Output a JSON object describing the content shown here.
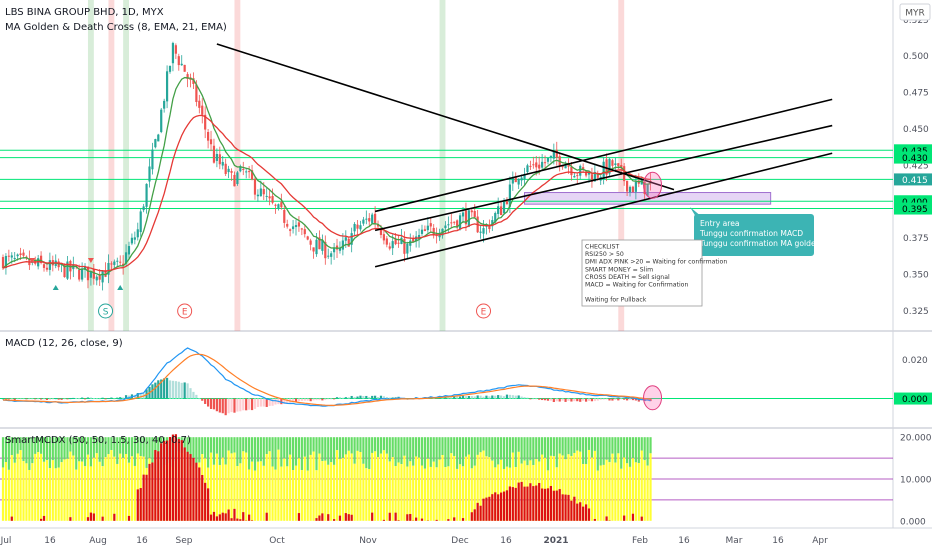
{
  "header": {
    "symbol_title": "LBS BINA GROUP BHD, 1D, MYX",
    "indicator_label": "MA Golden & Death Cross (8, EMA, 21, EMA)"
  },
  "currency_badge": "MYR",
  "panes": {
    "macd_label": "MACD (12, 26, close, 9)",
    "smart_label": "SmartMCDX (50, 50, 1.5, 30, 40, 0.7)"
  },
  "colors": {
    "up": "#26a69a",
    "down": "#ef5350",
    "ema_fast": "#43a047",
    "ema_slow": "#e53935",
    "macd_line": "#2196f3",
    "signal_line": "#ff7f27",
    "level_green": "#00e676",
    "smart_green": "#66dd66",
    "smart_yellow": "#ffff33",
    "smart_red": "#dd1111",
    "annotation_bg": "#3cb4b4",
    "zone_fill": "#e6d5f5"
  },
  "annotations": {
    "entry_box": [
      "Entry area",
      "Tunggu confirmation MACD",
      "Tunggu confirmation MA golden cross"
    ],
    "checklist": [
      "CHECKLIST",
      "RSI250 > 50",
      "DMI ADX PINK >20 = Waiting for confirmation",
      "SMART MONEY = Slim",
      "CROSS DEATH = Sell signal",
      "MACD = Waiting for Confirmation",
      "",
      "Waiting for Pullback"
    ],
    "markers": [
      {
        "label": "S",
        "color": "#26a69a",
        "date_index": 35
      },
      {
        "label": "E",
        "color": "#ef5350",
        "date_index": 62
      },
      {
        "label": "E",
        "color": "#ef5350",
        "date_index": 164
      }
    ]
  },
  "chart_data": {
    "type": "candlestick",
    "price_axis": {
      "ylim": [
        0.315,
        0.53
      ],
      "ticks": [
        "0.525",
        "0.500",
        "0.475",
        "0.450",
        "0.425",
        "0.400",
        "0.375",
        "0.350",
        "0.325"
      ],
      "tick_values": [
        0.525,
        0.5,
        0.475,
        0.45,
        0.425,
        0.4,
        0.375,
        0.35,
        0.325
      ]
    },
    "highlighted_levels": [
      {
        "label": "0.435",
        "value": 0.435
      },
      {
        "label": "0.430",
        "value": 0.43
      },
      {
        "label": "0.415",
        "value": 0.415,
        "current": true
      },
      {
        "label": "0.400",
        "value": 0.4
      },
      {
        "label": "0.395",
        "value": 0.395
      }
    ],
    "time_axis": [
      "Jul",
      "16",
      "Aug",
      "16",
      "Sep",
      "Oct",
      "Nov",
      "Dec",
      "16",
      "2021",
      "Feb",
      "16",
      "Mar",
      "16",
      "Apr"
    ],
    "macd_axis": {
      "ticks": [
        "0.020",
        "0.000"
      ],
      "tick_values": [
        0.02,
        0.0
      ],
      "highlight": "0.000",
      "ylim": [
        -0.012,
        0.032
      ]
    },
    "smart_axis": {
      "ticks": [
        "20.000",
        "10.000",
        "0.000"
      ],
      "tick_values": [
        20,
        10,
        0
      ],
      "ylim": [
        -1,
        21
      ]
    },
    "smart_levels": [
      15,
      10,
      5
    ],
    "price_keyframes": [
      [
        0,
        0.36
      ],
      [
        15,
        0.355
      ],
      [
        30,
        0.35
      ],
      [
        40,
        0.355
      ],
      [
        46,
        0.38
      ],
      [
        52,
        0.44
      ],
      [
        58,
        0.505
      ],
      [
        62,
        0.49
      ],
      [
        66,
        0.47
      ],
      [
        72,
        0.43
      ],
      [
        78,
        0.415
      ],
      [
        82,
        0.42
      ],
      [
        90,
        0.4
      ],
      [
        98,
        0.385
      ],
      [
        106,
        0.37
      ],
      [
        114,
        0.363
      ],
      [
        120,
        0.38
      ],
      [
        126,
        0.39
      ],
      [
        132,
        0.372
      ],
      [
        138,
        0.368
      ],
      [
        144,
        0.378
      ],
      [
        152,
        0.385
      ],
      [
        158,
        0.39
      ],
      [
        164,
        0.38
      ],
      [
        170,
        0.395
      ],
      [
        176,
        0.42
      ],
      [
        182,
        0.425
      ],
      [
        190,
        0.43
      ],
      [
        196,
        0.42
      ],
      [
        202,
        0.418
      ],
      [
        208,
        0.425
      ],
      [
        214,
        0.41
      ],
      [
        220,
        0.41
      ]
    ],
    "macd_keyframes": [
      [
        0,
        -0.001
      ],
      [
        20,
        -0.002
      ],
      [
        40,
        -0.001
      ],
      [
        48,
        0.003
      ],
      [
        56,
        0.018
      ],
      [
        63,
        0.026
      ],
      [
        68,
        0.022
      ],
      [
        76,
        0.01
      ],
      [
        84,
        0.003
      ],
      [
        92,
        -0.001
      ],
      [
        100,
        -0.003
      ],
      [
        110,
        -0.004
      ],
      [
        120,
        -0.002
      ],
      [
        130,
        0.0
      ],
      [
        140,
        0.0
      ],
      [
        150,
        0.001
      ],
      [
        160,
        0.003
      ],
      [
        168,
        0.005
      ],
      [
        176,
        0.007
      ],
      [
        182,
        0.006
      ],
      [
        190,
        0.004
      ],
      [
        200,
        0.002
      ],
      [
        210,
        0.001
      ],
      [
        220,
        -0.001
      ]
    ],
    "trendlines": [
      {
        "name": "falling-resistance",
        "from": [
          73,
          0.508
        ],
        "to": [
          229,
          0.408
        ]
      },
      {
        "name": "channel-support",
        "from": [
          127,
          0.355
        ],
        "to": [
          283,
          0.433
        ]
      },
      {
        "name": "channel-mid",
        "from": [
          127,
          0.38
        ],
        "to": [
          283,
          0.452
        ]
      },
      {
        "name": "channel-top",
        "from": [
          127,
          0.393
        ],
        "to": [
          283,
          0.47
        ]
      }
    ],
    "highlight_bars": [
      {
        "from": 29,
        "to": 31,
        "color": "green"
      },
      {
        "from": 36,
        "to": 38,
        "color": "red"
      },
      {
        "from": 41,
        "to": 43,
        "color": "green"
      },
      {
        "from": 79,
        "to": 81,
        "color": "red"
      },
      {
        "from": 149,
        "to": 151,
        "color": "green"
      },
      {
        "from": 210,
        "to": 212,
        "color": "red"
      }
    ],
    "zone": {
      "from": 178,
      "to": 262,
      "top": 0.406,
      "bottom": 0.398
    },
    "bars_count": 222,
    "axis_days": 305
  }
}
